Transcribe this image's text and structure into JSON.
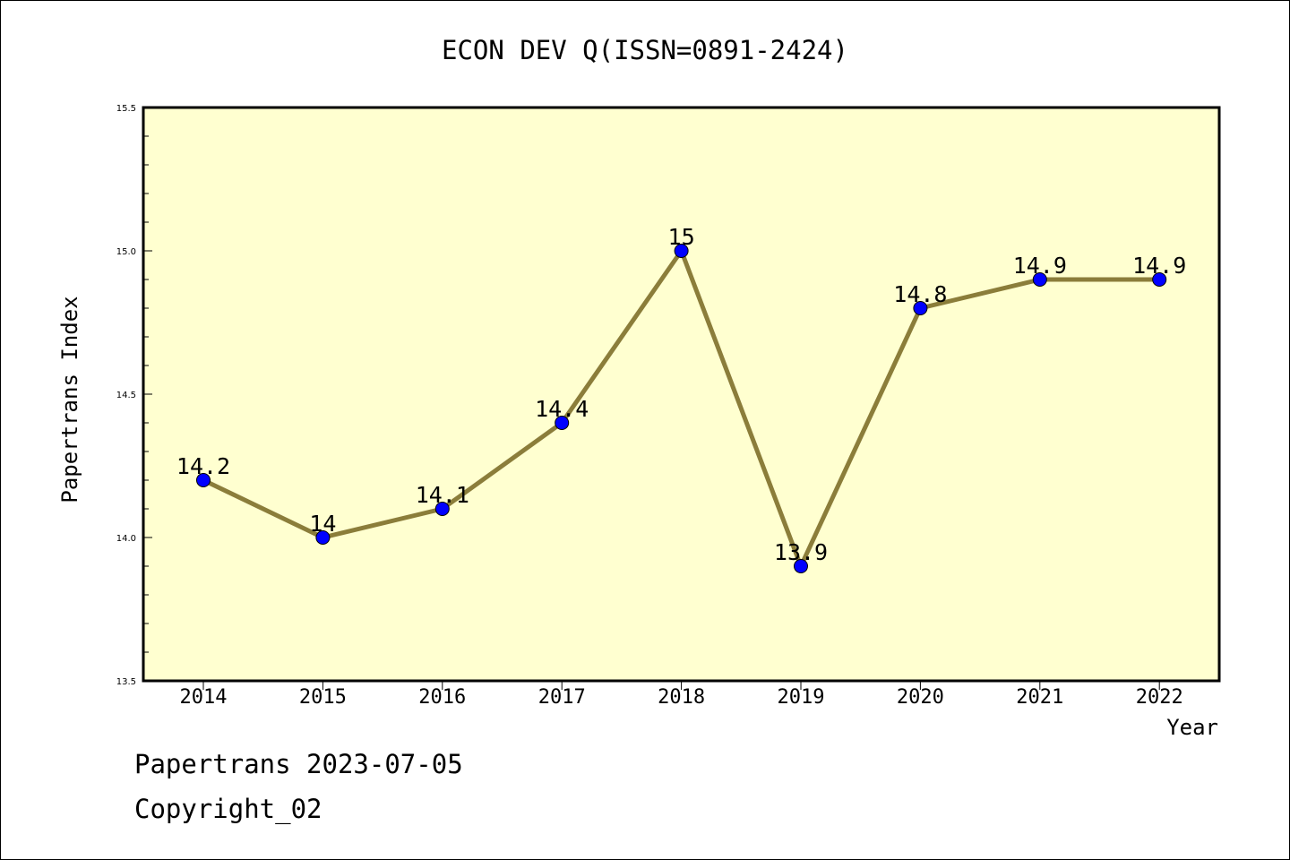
{
  "chart_data": {
    "type": "line",
    "title": "ECON DEV Q(ISSN=0891-2424)",
    "xlabel": "Year",
    "ylabel": "Papertrans Index",
    "categories": [
      "2014",
      "2015",
      "2016",
      "2017",
      "2018",
      "2019",
      "2020",
      "2021",
      "2022"
    ],
    "series": [
      {
        "values": [
          14.2,
          14.0,
          14.1,
          14.4,
          15.0,
          13.9,
          14.8,
          14.9,
          14.9
        ],
        "labels": [
          "14.2",
          "14",
          "14.1",
          "14.4",
          "15",
          "13.9",
          "14.8",
          "14.9",
          "14.9"
        ]
      }
    ],
    "ylim": [
      13.5,
      15.5
    ],
    "yticks": [
      13.5,
      14.0,
      14.5,
      15.0,
      15.5
    ],
    "ytick_labels": [
      "13.5",
      "14.0",
      "14.5",
      "15.0",
      "15.5"
    ],
    "grid": false,
    "legend": "none",
    "colors": {
      "plot_background": "#ffffd0",
      "line": "#8b7d3a",
      "marker": "#0000ff"
    }
  },
  "footer": {
    "line1": "Papertrans 2023-07-05",
    "line2": "Copyright_02"
  }
}
